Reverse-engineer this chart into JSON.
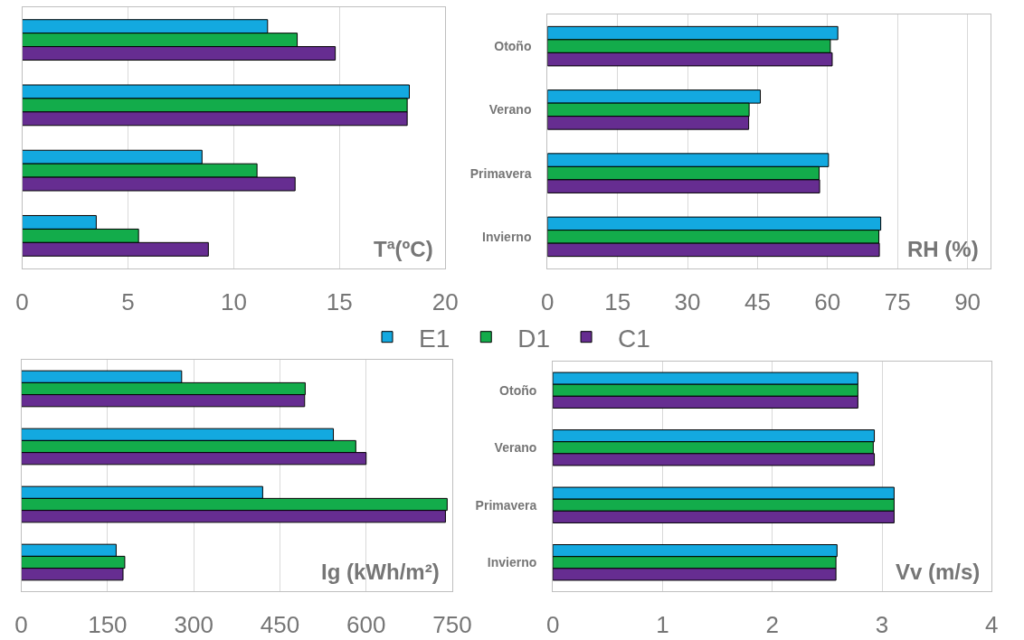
{
  "chart_data": [
    {
      "type": "bar",
      "orientation": "horizontal",
      "title": "Tª(ºC)",
      "categories": [
        null,
        null,
        null,
        null
      ],
      "xlim": [
        0,
        20
      ],
      "xticks": [
        0,
        5,
        10,
        15,
        20
      ],
      "grid": "x",
      "tick_labels": "x",
      "legend": "bottom",
      "series": [
        {
          "name": "E1",
          "color": "#13a9e0",
          "values": [
            11.6,
            18.3,
            8.5,
            3.5
          ]
        },
        {
          "name": "D1",
          "color": "#13ac4b",
          "values": [
            13.0,
            18.2,
            11.1,
            5.5
          ]
        },
        {
          "name": "C1",
          "color": "#662d91",
          "values": [
            14.8,
            18.2,
            12.9,
            8.8
          ]
        }
      ]
    },
    {
      "type": "bar",
      "orientation": "horizontal",
      "title": "RH (%)",
      "categories": [
        "Otoño",
        "Verano",
        "Primavera",
        "Invierno"
      ],
      "xlim": [
        0,
        95
      ],
      "xticks": [
        0,
        15,
        30,
        45,
        60,
        75,
        90
      ],
      "grid": "x",
      "series": [
        {
          "color": "#13a9e0",
          "values": [
            62.2,
            45.6,
            60.2,
            71.4
          ]
        },
        {
          "color": "#13ac4b",
          "values": [
            60.6,
            43.2,
            58.2,
            71.0
          ]
        },
        {
          "color": "#662d91",
          "values": [
            61.0,
            43.1,
            58.3,
            71.1
          ]
        }
      ]
    },
    {
      "type": "bar",
      "orientation": "horizontal",
      "title": "Ig (kWh/m²)",
      "categories": [
        null,
        null,
        null,
        null
      ],
      "xlim": [
        0,
        750
      ],
      "xticks": [
        0,
        150,
        300,
        450,
        600,
        750
      ],
      "grid": "x",
      "tick_labels": "x",
      "series": [
        {
          "color": "#13a9e0",
          "values": [
            279,
            543,
            420,
            165
          ]
        },
        {
          "color": "#13ac4b",
          "values": [
            494,
            582,
            741,
            180
          ]
        },
        {
          "color": "#662d91",
          "values": [
            493,
            600,
            738,
            177
          ]
        }
      ]
    },
    {
      "type": "bar",
      "orientation": "horizontal",
      "title": "Vv (m/s)",
      "categories": [
        "Otoño",
        "Verano",
        "Primavera",
        "Invierno"
      ],
      "xlim": [
        0,
        4
      ],
      "xticks": [
        0,
        1,
        2,
        3,
        4
      ],
      "grid": "x",
      "series": [
        {
          "color": "#13a9e0",
          "values": [
            2.78,
            2.93,
            3.11,
            2.59
          ]
        },
        {
          "color": "#13ac4b",
          "values": [
            2.78,
            2.92,
            3.11,
            2.58
          ]
        },
        {
          "color": "#662d91",
          "values": [
            2.78,
            2.93,
            3.11,
            2.58
          ]
        }
      ]
    }
  ]
}
